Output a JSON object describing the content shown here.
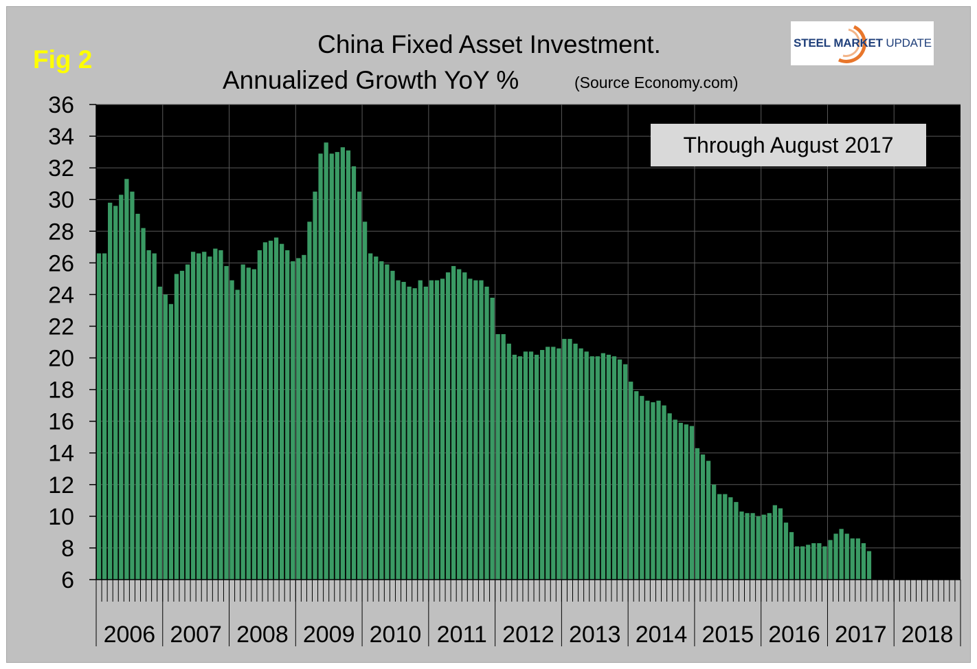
{
  "figure": {
    "fig_label": "Fig 2",
    "title_line1": "China Fixed Asset Investment.",
    "title_line2": "Annualized Growth YoY %",
    "source": "(Source Economy.com)",
    "annotation": "Through August 2017"
  },
  "logo": {
    "word1": "STEEL",
    "word2": "MARKET",
    "word3": "UPDATE"
  },
  "colors": {
    "frame": "#c0c0c0",
    "plot_bg": "#000000",
    "bar": "#3a9a64",
    "grid": "#595959",
    "fig_label": "#ffff00",
    "annotation_bg": "#d9d9d9",
    "logo_text": "#1f3f7a",
    "logo_accent": "#e8762b"
  },
  "chart_data": {
    "type": "bar",
    "title": "China Fixed Asset Investment. Annualized Growth YoY %",
    "xlabel": "",
    "ylabel": "",
    "ylim": [
      6,
      36
    ],
    "yticks": [
      6,
      8,
      10,
      12,
      14,
      16,
      18,
      20,
      22,
      24,
      26,
      28,
      30,
      32,
      34,
      36
    ],
    "grid": true,
    "x_axis_years": [
      "2006",
      "2007",
      "2008",
      "2009",
      "2010",
      "2011",
      "2012",
      "2013",
      "2014",
      "2015",
      "2016",
      "2017",
      "2018"
    ],
    "months_per_year": 12,
    "first_period": "2006-01",
    "series": [
      {
        "values": [
          26.6,
          26.6,
          29.8,
          29.6,
          30.3,
          31.3,
          30.5,
          29.1,
          28.2,
          26.8,
          26.6,
          24.5,
          24.0,
          23.4,
          25.3,
          25.5,
          25.9,
          26.7,
          26.6,
          26.7,
          26.4,
          26.9,
          26.8,
          25.8,
          24.9,
          24.3,
          25.9,
          25.7,
          25.6,
          26.8,
          27.3,
          27.4,
          27.6,
          27.2,
          26.8,
          26.1,
          26.3,
          26.5,
          28.6,
          30.5,
          32.9,
          33.6,
          32.9,
          33.0,
          33.3,
          33.1,
          32.1,
          30.5,
          28.6,
          26.6,
          26.4,
          26.1,
          25.9,
          25.5,
          24.9,
          24.8,
          24.5,
          24.4,
          24.9,
          24.5,
          24.9,
          24.9,
          25.0,
          25.4,
          25.8,
          25.6,
          25.4,
          25.0,
          24.9,
          24.9,
          24.5,
          23.8,
          21.5,
          21.5,
          20.9,
          20.2,
          20.1,
          20.4,
          20.4,
          20.2,
          20.5,
          20.7,
          20.7,
          20.6,
          21.2,
          21.2,
          20.9,
          20.6,
          20.4,
          20.1,
          20.1,
          20.3,
          20.2,
          20.1,
          19.9,
          19.6,
          18.5,
          17.9,
          17.6,
          17.3,
          17.2,
          17.3,
          17.0,
          16.5,
          16.1,
          15.9,
          15.8,
          15.7,
          14.3,
          13.9,
          13.5,
          12.0,
          11.4,
          11.4,
          11.2,
          10.9,
          10.3,
          10.2,
          10.2,
          10.0,
          10.1,
          10.2,
          10.7,
          10.5,
          9.6,
          9.0,
          8.1,
          8.1,
          8.2,
          8.3,
          8.3,
          8.1,
          8.5,
          8.9,
          9.2,
          8.9,
          8.6,
          8.6,
          8.3,
          7.8
        ]
      }
    ]
  }
}
